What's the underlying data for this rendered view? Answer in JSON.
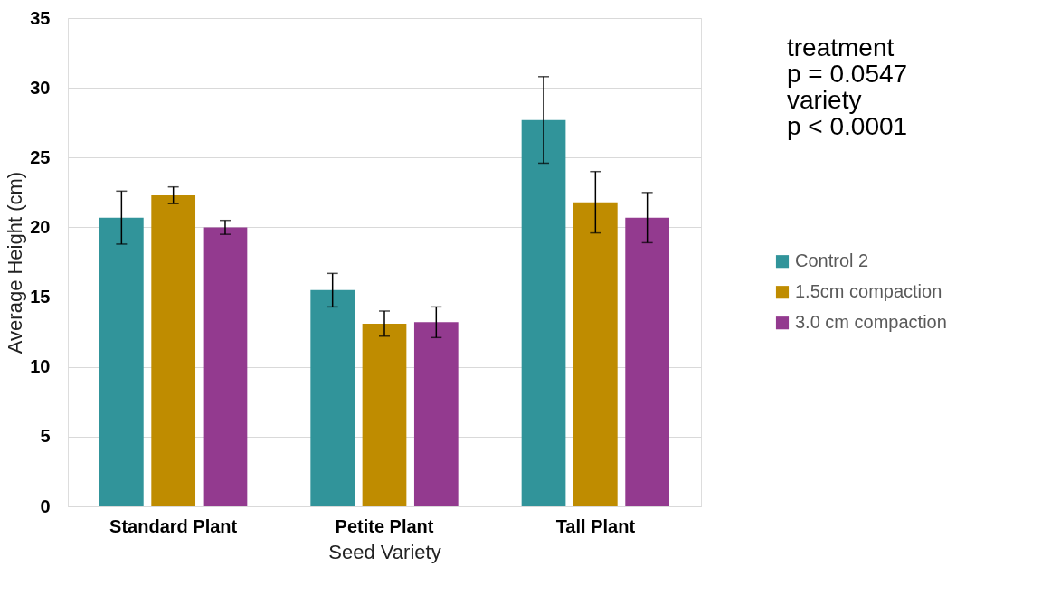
{
  "chart_data": {
    "type": "bar",
    "xlabel": "Seed Variety",
    "ylabel": "Average Height (cm)",
    "categories": [
      "Standard Plant",
      "Petite Plant",
      "Tall Plant"
    ],
    "series": [
      {
        "name": "Control 2",
        "color": "#31949a",
        "values": [
          20.7,
          15.5,
          27.7
        ],
        "errors": [
          1.9,
          1.2,
          3.1
        ]
      },
      {
        "name": "1.5cm compaction",
        "color": "#bf8c00",
        "values": [
          22.3,
          13.1,
          21.8
        ],
        "errors": [
          0.6,
          0.9,
          2.2
        ]
      },
      {
        "name": "3.0 cm compaction",
        "color": "#933a8f",
        "values": [
          20.0,
          13.2,
          20.7
        ],
        "errors": [
          0.5,
          1.1,
          1.8
        ]
      }
    ],
    "ylim": [
      0,
      35
    ],
    "yticks": [
      0,
      5,
      10,
      15,
      20,
      25,
      30,
      35
    ],
    "grid": "y",
    "legend": "right",
    "annotations": [
      "treatment\np = 0.0547\nvariety\np < 0.0001"
    ]
  }
}
